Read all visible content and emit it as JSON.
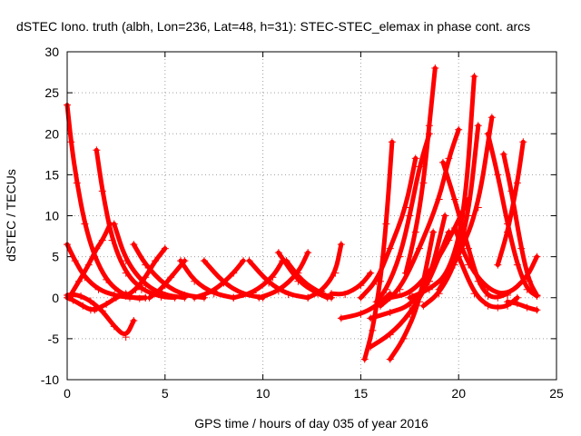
{
  "chart_data": {
    "type": "scatter",
    "title": "dSTEC Iono. truth (albh, Lon=236, Lat=48, h=31): STEC-STEC_elemax in phase cont. arcs",
    "xlabel": "GPS time / hours of day 035 of year 2016",
    "ylabel": "dSTEC  / TECUs",
    "xlim": [
      0,
      25
    ],
    "ylim": [
      -10,
      30
    ],
    "xticks": [
      0,
      5,
      10,
      15,
      20,
      25
    ],
    "yticks": [
      -10,
      -5,
      0,
      5,
      10,
      15,
      20,
      25,
      30
    ],
    "grid": true,
    "marker": "+",
    "color": "#ff0000",
    "series": [
      {
        "x": [
          0.0,
          0.2,
          0.5,
          0.9,
          1.4,
          2.0,
          2.6,
          3.2,
          3.7,
          4.0
        ],
        "y": [
          23.5,
          19,
          14,
          9,
          5,
          2.2,
          0.8,
          0.1,
          -0.1,
          0
        ]
      },
      {
        "x": [
          0.0,
          0.3,
          0.7,
          1.2,
          1.8,
          2.4,
          3.0,
          3.4
        ],
        "y": [
          0.3,
          0.4,
          0.2,
          -0.4,
          -1.6,
          -3.5,
          -4.8,
          -2.8
        ]
      },
      {
        "x": [
          0.0,
          0.3,
          0.8,
          1.2,
          1.5
        ],
        "y": [
          0,
          -0.3,
          -1,
          -1.5,
          -1.3
        ]
      },
      {
        "x": [
          0.0,
          0.4,
          0.9,
          1.6,
          2.4,
          3.2,
          4.0
        ],
        "y": [
          6.5,
          4.5,
          2.5,
          1,
          0.3,
          0,
          0
        ]
      },
      {
        "x": [
          0.1,
          0.6,
          1.1,
          1.5,
          1.8,
          2.2
        ],
        "y": [
          0,
          2,
          4,
          6,
          7,
          9
        ]
      },
      {
        "x": [
          1.5,
          1.8,
          2.3,
          3.0,
          3.8,
          4.8,
          5.5
        ],
        "y": [
          18,
          13,
          7,
          3,
          1,
          0.1,
          0
        ]
      },
      {
        "x": [
          2.4,
          3.0,
          4.0,
          5.0,
          6.0
        ],
        "y": [
          9,
          4.5,
          1.5,
          0.3,
          0
        ]
      },
      {
        "x": [
          1.4,
          2.0,
          2.5,
          3.0
        ],
        "y": [
          -1.5,
          -0.8,
          0,
          0.5
        ]
      },
      {
        "x": [
          3.4,
          4.0,
          5.0,
          6.0,
          7.0
        ],
        "y": [
          6.5,
          4,
          1.5,
          0.3,
          0
        ]
      },
      {
        "x": [
          3.0,
          3.5,
          4.0,
          4.5,
          5.0
        ],
        "y": [
          0.2,
          1,
          2.5,
          4.5,
          6
        ]
      },
      {
        "x": [
          4.2,
          4.7,
          5.3,
          6.0
        ],
        "y": [
          0,
          0.8,
          2.5,
          4.5
        ]
      },
      {
        "x": [
          5.8,
          6.5,
          7.5,
          8.5
        ],
        "y": [
          4.5,
          2,
          0.5,
          0
        ]
      },
      {
        "x": [
          6.5,
          7.5,
          8.5,
          9.0
        ],
        "y": [
          0,
          0.8,
          3,
          4.5
        ]
      },
      {
        "x": [
          7.0,
          8.0,
          9.0,
          10.0
        ],
        "y": [
          4.5,
          1.8,
          0.4,
          0
        ]
      },
      {
        "x": [
          8.5,
          9.5,
          10.5,
          11.0
        ],
        "y": [
          0,
          0.6,
          2.5,
          4.5
        ]
      },
      {
        "x": [
          9.3,
          10.3,
          11.3,
          12.3
        ],
        "y": [
          4.5,
          1.8,
          0.4,
          0
        ]
      },
      {
        "x": [
          9.8,
          10.8,
          11.8,
          12.3
        ],
        "y": [
          0,
          0.8,
          3,
          5.5
        ]
      },
      {
        "x": [
          10.8,
          11.8,
          12.8,
          13.3
        ],
        "y": [
          5.5,
          2,
          0.5,
          0
        ]
      },
      {
        "x": [
          11.2,
          12.0,
          13.0,
          13.5
        ],
        "y": [
          4.5,
          2,
          0.5,
          0
        ]
      },
      {
        "x": [
          12.3,
          13.0,
          13.7,
          14.0
        ],
        "y": [
          0,
          0.8,
          3,
          6.5
        ]
      },
      {
        "x": [
          13.5,
          14.2,
          15.0,
          15.5
        ],
        "y": [
          0.5,
          0.4,
          1.5,
          3
        ]
      },
      {
        "x": [
          14.0,
          15.0,
          15.8,
          16.5
        ],
        "y": [
          -2.5,
          -2,
          -1,
          0.5
        ]
      },
      {
        "x": [
          15.0,
          15.8,
          16.5,
          17.3,
          17.8
        ],
        "y": [
          0,
          2,
          6,
          11,
          17
        ]
      },
      {
        "x": [
          15.2,
          15.6,
          16.0,
          16.3,
          16.6
        ],
        "y": [
          -7.5,
          -4,
          2,
          9,
          19
        ]
      },
      {
        "x": [
          15.8,
          16.3,
          17.0,
          17.5,
          18.0,
          18.5
        ],
        "y": [
          -0.5,
          1,
          5,
          10,
          16,
          20
        ]
      },
      {
        "x": [
          16.5,
          17.2,
          18.0,
          18.7
        ],
        "y": [
          -7.5,
          -5,
          -0.5,
          8
        ]
      },
      {
        "x": [
          15.5,
          16.5,
          17.5,
          18.5,
          19.3
        ],
        "y": [
          -2.5,
          -1.8,
          -1,
          2,
          10
        ]
      },
      {
        "x": [
          15.5,
          16.5,
          17.5,
          18.5,
          19.5
        ],
        "y": [
          -6,
          -4.5,
          -2,
          2,
          8
        ]
      },
      {
        "x": [
          16.5,
          17.5,
          18.5,
          19.5,
          20.5
        ],
        "y": [
          0,
          0.5,
          3,
          7,
          12
        ]
      },
      {
        "x": [
          17.3,
          17.8,
          18.2,
          18.5,
          18.8
        ],
        "y": [
          3,
          8,
          14,
          21,
          28
        ]
      },
      {
        "x": [
          16.0,
          17.0,
          18.0,
          19.0,
          19.5,
          20.0
        ],
        "y": [
          -1,
          1,
          6,
          12,
          17,
          20.5
        ]
      },
      {
        "x": [
          17.5,
          18.5,
          19.5,
          20.3,
          20.8
        ],
        "y": [
          0,
          1,
          3,
          10,
          27
        ]
      },
      {
        "x": [
          18.2,
          19.0,
          19.8,
          20.5,
          21.0
        ],
        "y": [
          -1,
          0.5,
          4,
          10,
          21
        ]
      },
      {
        "x": [
          19.0,
          20.0,
          21.0,
          21.7
        ],
        "y": [
          1,
          5,
          11,
          22
        ]
      },
      {
        "x": [
          20.0,
          20.8,
          21.5,
          22.0,
          22.5,
          23.0
        ],
        "y": [
          5,
          0.5,
          -1,
          -1.2,
          -1,
          0
        ]
      },
      {
        "x": [
          19.2,
          19.8,
          20.5,
          21.0,
          21.5,
          22.0,
          22.5
        ],
        "y": [
          16.5,
          12,
          6,
          2,
          0.2,
          0,
          0.5
        ]
      },
      {
        "x": [
          21.5,
          22.0,
          22.5,
          23.0,
          23.5,
          24.0
        ],
        "y": [
          20,
          15,
          9,
          4,
          1,
          0.2
        ]
      },
      {
        "x": [
          22.3,
          22.7,
          23.2,
          23.6,
          24.0
        ],
        "y": [
          17.5,
          13,
          6,
          2,
          0.3
        ]
      },
      {
        "x": [
          22.0,
          22.5,
          23.0,
          23.3
        ],
        "y": [
          4,
          8,
          14,
          19
        ]
      },
      {
        "x": [
          22.5,
          23.0,
          23.5,
          24.0
        ],
        "y": [
          -0.5,
          -0.7,
          -1.2,
          -1.5
        ]
      },
      {
        "x": [
          19.8,
          20.5,
          21.5,
          22.5,
          23.5,
          24.0
        ],
        "y": [
          8.5,
          4,
          1,
          0.3,
          2.5,
          5
        ]
      }
    ]
  }
}
